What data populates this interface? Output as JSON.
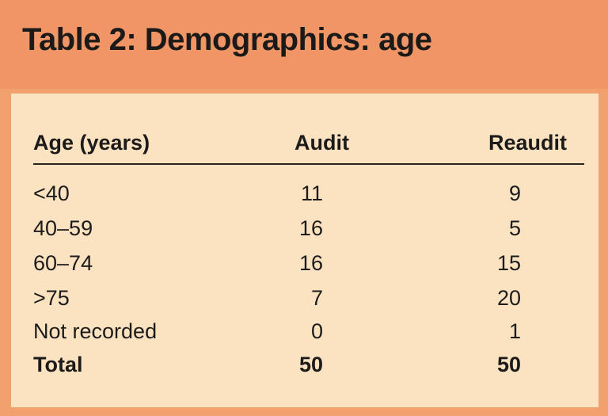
{
  "title": "Table 2: Demographics: age",
  "chart_data": {
    "type": "table",
    "title": "Table 2: Demographics: age",
    "columns": [
      "Age (years)",
      "Audit",
      "Reaudit"
    ],
    "rows": [
      [
        "<40",
        "11",
        "9"
      ],
      [
        "40–59",
        "16",
        "5"
      ],
      [
        "60–74",
        "16",
        "15"
      ],
      [
        ">75",
        "7",
        "20"
      ],
      [
        "Not recorded",
        "0",
        "1"
      ],
      [
        "Total",
        "50",
        "50"
      ]
    ]
  },
  "colors": {
    "header_background": "#f09565",
    "panel_background": "#fbe3c2",
    "border": "#f3a06f",
    "text": "#1d1b19"
  }
}
